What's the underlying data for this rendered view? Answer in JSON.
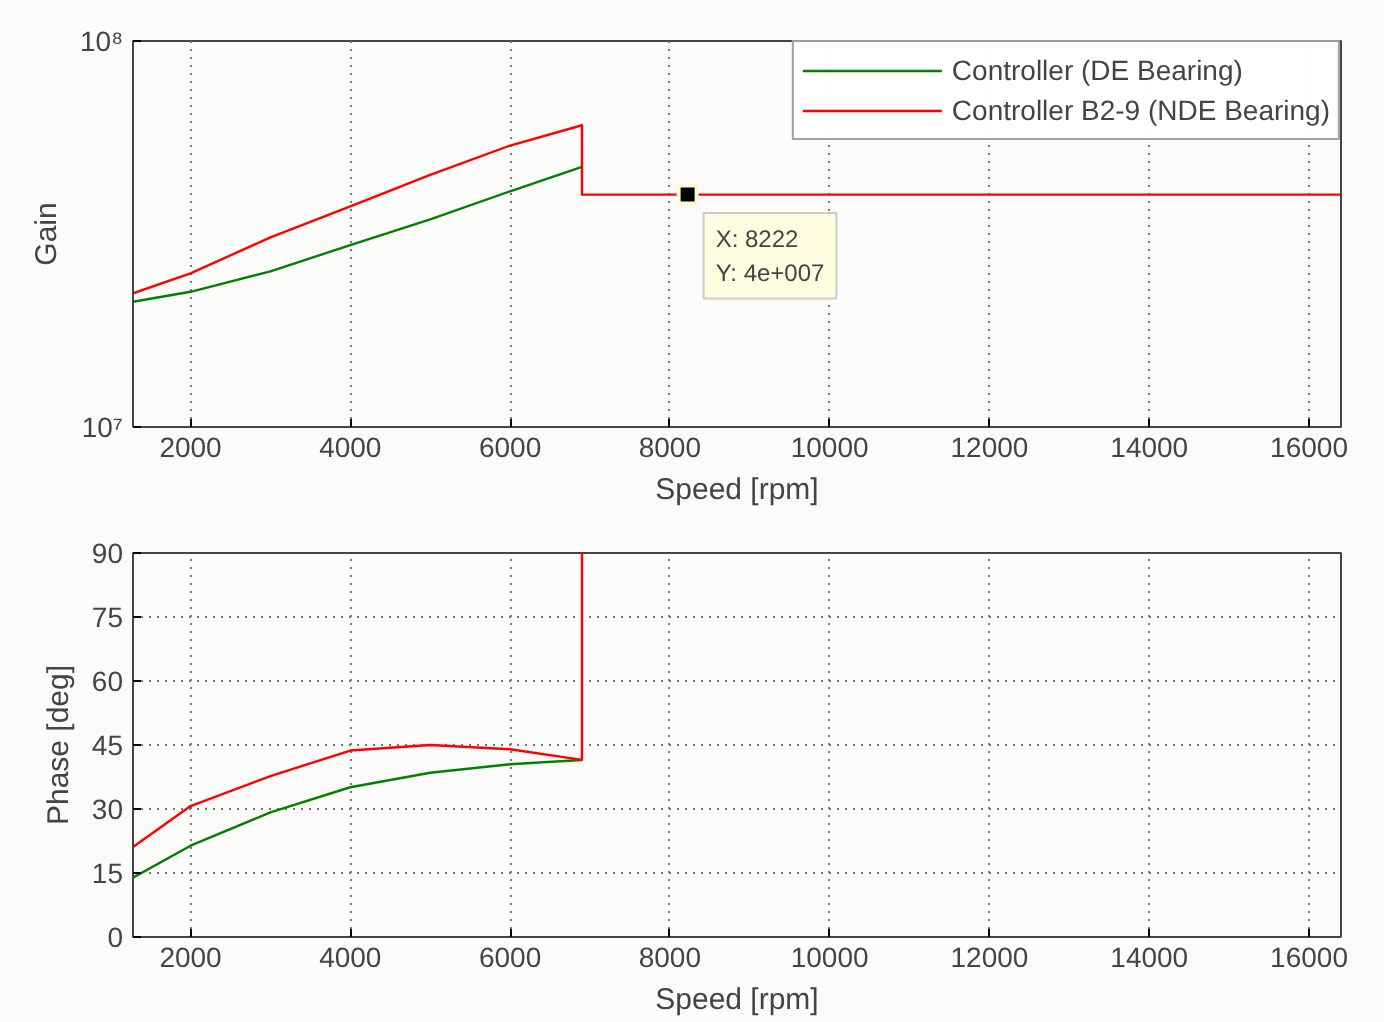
{
  "chart_data": [
    {
      "type": "line",
      "ylabel": "Gain",
      "xlabel": "Speed [rpm]",
      "log": "y",
      "grid": "x",
      "legend": "top right",
      "xlim": [
        1280,
        16400
      ],
      "xticks": [
        2000,
        4000,
        6000,
        8000,
        10000,
        12000,
        14000,
        16000
      ],
      "ylim": [
        10000000,
        100000000
      ],
      "yticks": [
        {
          "value": 10000000,
          "label": "10⁷"
        },
        {
          "value": 100000000,
          "label": "10⁸"
        }
      ],
      "annotations": [
        {
          "text": "X: 8222\nY: 4e+007",
          "x": 8222,
          "y": 40000000
        }
      ],
      "series": [
        {
          "name": "Controller (DE Bearing)",
          "color": "#008000",
          "x": [
            1280,
            2000,
            3000,
            4000,
            5000,
            6000,
            6900
          ],
          "values": [
            21100000,
            22400000,
            25300000,
            29600000,
            34500000,
            40800000,
            47200000
          ]
        },
        {
          "name": "Controller B2-9 (NDE Bearing)",
          "color": "#ff0000",
          "x": [
            1280,
            2000,
            3000,
            4000,
            5000,
            6000,
            6900,
            6900,
            16400
          ],
          "values": [
            22200000,
            25000000,
            31000000,
            37300000,
            45000000,
            53600000,
            60500000,
            40000000,
            40000000
          ]
        }
      ]
    },
    {
      "type": "line",
      "ylabel": "Phase [deg]",
      "xlabel": "Speed [rpm]",
      "grid": true,
      "xlim": [
        1280,
        16400
      ],
      "xticks": [
        2000,
        4000,
        6000,
        8000,
        10000,
        12000,
        14000,
        16000
      ],
      "ylim": [
        0,
        90
      ],
      "yticks": [
        0,
        15,
        30,
        45,
        60,
        75,
        90
      ],
      "series": [
        {
          "color": "#008000",
          "x": [
            1280,
            2000,
            3000,
            4000,
            5000,
            6000,
            6900
          ],
          "values": [
            13.9,
            21.4,
            29.2,
            35.1,
            38.5,
            40.5,
            41.5
          ]
        },
        {
          "color": "#ff0000",
          "x": [
            1280,
            2000,
            3000,
            4000,
            5000,
            6000,
            6900,
            6900
          ],
          "values": [
            21.1,
            30.7,
            37.7,
            43.7,
            45,
            44,
            41.5,
            90
          ]
        }
      ]
    }
  ]
}
